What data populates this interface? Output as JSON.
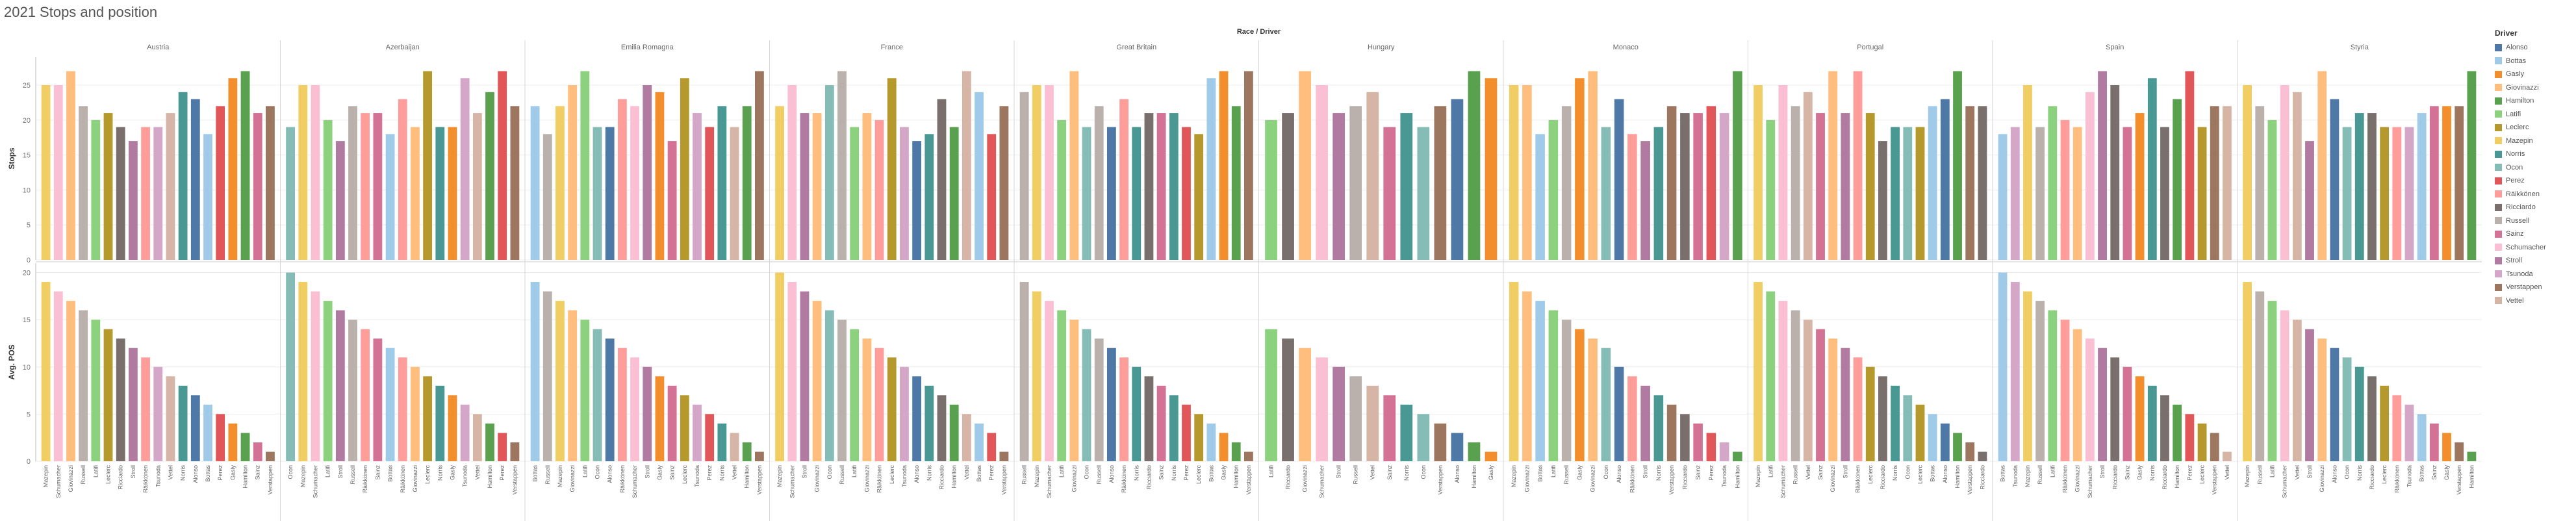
{
  "title": "2021 Stops and position",
  "chart_data": {
    "type": "bar",
    "title": "2021 Stops and position",
    "column_header": "Race / Driver",
    "legend_title": "Driver",
    "legend_position": "right",
    "grid": true,
    "panels": [
      {
        "ylabel": "Stops",
        "ylim": [
          0,
          29
        ],
        "ticks": [
          0,
          5,
          10,
          15,
          20,
          25
        ]
      },
      {
        "ylabel": "Avg. POS",
        "ylim": [
          0,
          21
        ],
        "ticks": [
          0,
          5,
          10,
          15,
          20
        ]
      }
    ],
    "colors": {
      "Alonso": "#4E79A7",
      "Bottas": "#A0CBE8",
      "Gasly": "#F28E2B",
      "Giovinazzi": "#FFBE7D",
      "Hamilton": "#59A14F",
      "Latifi": "#8CD17D",
      "Leclerc": "#B6992D",
      "Mazepin": "#F1CE63",
      "Norris": "#499894",
      "Ocon": "#86BCB6",
      "Perez": "#E15759",
      "Räikkönen": "#FF9D9A",
      "Ricciardo": "#79706E",
      "Russell": "#BAB0AC",
      "Sainz": "#D37295",
      "Schumacher": "#FABFD2",
      "Stroll": "#B07AA1",
      "Tsunoda": "#D4A6C8",
      "Verstappen": "#9D7660",
      "Vettel": "#D7B5A6"
    },
    "races": [
      {
        "name": "Austria",
        "drivers": [
          "Mazepin",
          "Schumacher",
          "Giovinazzi",
          "Russell",
          "Latifi",
          "Leclerc",
          "Ricciardo",
          "Stroll",
          "Räikkönen",
          "Tsunoda",
          "Vettel",
          "Norris",
          "Alonso",
          "Bottas",
          "Perez",
          "Gasly",
          "Hamilton",
          "Sainz",
          "Verstappen"
        ],
        "stops": [
          25,
          25,
          27,
          22,
          20,
          21,
          19,
          17,
          19,
          19,
          21,
          24,
          23,
          18,
          22,
          26,
          27,
          21,
          22
        ],
        "avg_pos": [
          19,
          18,
          17,
          16,
          15,
          14,
          13,
          12,
          11,
          10,
          9,
          8,
          7,
          6,
          5,
          4,
          3,
          2,
          1
        ]
      },
      {
        "name": "Azerbaijan",
        "drivers": [
          "Ocon",
          "Mazepin",
          "Schumacher",
          "Latifi",
          "Stroll",
          "Russell",
          "Räikkönen",
          "Sainz",
          "Bottas",
          "Räikkönen",
          "Giovinazzi",
          "Leclerc",
          "Norris",
          "Gasly",
          "Tsunoda",
          "Vettel",
          "Hamilton",
          "Perez",
          "Verstappen"
        ],
        "stops": [
          19,
          25,
          25,
          20,
          17,
          22,
          21,
          21,
          18,
          23,
          19,
          27,
          19,
          19,
          26,
          21,
          24,
          27,
          22
        ],
        "avg_pos": [
          20,
          19,
          18,
          17,
          16,
          15,
          14,
          13,
          12,
          11,
          10,
          9,
          8,
          7,
          6,
          5,
          4,
          3,
          2
        ]
      },
      {
        "name": "Emilia Romagna",
        "drivers": [
          "Bottas",
          "Russell",
          "Mazepin",
          "Giovinazzi",
          "Latifi",
          "Ocon",
          "Alonso",
          "Räikkönen",
          "Schumacher",
          "Stroll",
          "Gasly",
          "Sainz",
          "Leclerc",
          "Tsunoda",
          "Perez",
          "Norris",
          "Vettel",
          "Hamilton",
          "Verstappen"
        ],
        "stops": [
          22,
          18,
          22,
          25,
          27,
          19,
          19,
          23,
          22,
          25,
          24,
          17,
          26,
          21,
          19,
          22,
          19,
          22,
          27
        ],
        "avg_pos": [
          19,
          18,
          17,
          16,
          15,
          14,
          13,
          12,
          11,
          10,
          9,
          8,
          7,
          6,
          5,
          4,
          3,
          2,
          1
        ]
      },
      {
        "name": "France",
        "drivers": [
          "Mazepin",
          "Schumacher",
          "Stroll",
          "Giovinazzi",
          "Ocon",
          "Russell",
          "Latifi",
          "Giovinazzi",
          "Räikkönen",
          "Leclerc",
          "Tsunoda",
          "Alonso",
          "Norris",
          "Ricciardo",
          "Hamilton",
          "Vettel",
          "Bottas",
          "Perez",
          "Verstappen"
        ],
        "stops": [
          22,
          25,
          21,
          21,
          25,
          27,
          19,
          21,
          20,
          26,
          19,
          17,
          18,
          23,
          19,
          27,
          24,
          18,
          22
        ],
        "avg_pos": [
          20,
          19,
          18,
          17,
          16,
          15,
          14,
          13,
          12,
          11,
          10,
          9,
          8,
          7,
          6,
          5,
          4,
          3,
          1
        ]
      },
      {
        "name": "Great Britain",
        "drivers": [
          "Russell",
          "Mazepin",
          "Schumacher",
          "Latifi",
          "Giovinazzi",
          "Ocon",
          "Russell",
          "Alonso",
          "Räikkönen",
          "Norris",
          "Ricciardo",
          "Sainz",
          "Norris",
          "Perez",
          "Leclerc",
          "Bottas",
          "Gasly",
          "Hamilton",
          "Verstappen"
        ],
        "stops": [
          24,
          25,
          25,
          20,
          27,
          19,
          22,
          19,
          23,
          19,
          21,
          21,
          21,
          19,
          18,
          26,
          27,
          22,
          27
        ],
        "avg_pos": [
          19,
          18,
          17,
          16,
          15,
          14,
          13,
          12,
          11,
          10,
          9,
          8,
          7,
          6,
          5,
          4,
          3,
          2,
          1
        ]
      },
      {
        "name": "Hungary",
        "drivers": [
          "Latifi",
          "Ricciardo",
          "Giovinazzi",
          "Schumacher",
          "Stroll",
          "Russell",
          "Vettel",
          "Sainz",
          "Norris",
          "Ocon",
          "Verstappen",
          "Alonso",
          "Hamilton",
          "Gasly"
        ],
        "stops": [
          20,
          21,
          27,
          25,
          21,
          22,
          24,
          19,
          21,
          19,
          22,
          23,
          27,
          26
        ],
        "avg_pos": [
          14,
          13,
          12,
          11,
          10,
          9,
          8,
          7,
          6,
          5,
          4,
          3,
          2,
          1
        ]
      },
      {
        "name": "Monaco",
        "drivers": [
          "Mazepin",
          "Giovinazzi",
          "Bottas",
          "Latifi",
          "Russell",
          "Gasly",
          "Giovinazzi",
          "Ocon",
          "Alonso",
          "Räikkönen",
          "Stroll",
          "Norris",
          "Verstappen",
          "Ricciardo",
          "Sainz",
          "Perez",
          "Tsunoda",
          "Hamilton"
        ],
        "stops": [
          25,
          25,
          18,
          20,
          22,
          26,
          27,
          19,
          23,
          18,
          17,
          19,
          22,
          21,
          21,
          22,
          21,
          27
        ],
        "avg_pos": [
          19,
          18,
          17,
          16,
          15,
          14,
          13,
          12,
          10,
          9,
          8,
          7,
          6,
          5,
          4,
          3,
          2,
          1
        ]
      },
      {
        "name": "Portugal",
        "drivers": [
          "Mazepin",
          "Latifi",
          "Schumacher",
          "Russell",
          "Vettel",
          "Sainz",
          "Giovinazzi",
          "Stroll",
          "Räikkönen",
          "Leclerc",
          "Ricciardo",
          "Norris",
          "Ocon",
          "Leclerc",
          "Bottas",
          "Alonso",
          "Hamilton",
          "Verstappen",
          "Ricciardo"
        ],
        "stops": [
          25,
          20,
          25,
          22,
          24,
          21,
          27,
          21,
          27,
          21,
          17,
          19,
          19,
          19,
          22,
          23,
          27,
          22,
          22
        ],
        "avg_pos": [
          19,
          18,
          17,
          16,
          15,
          14,
          13,
          12,
          11,
          10,
          9,
          8,
          7,
          6,
          5,
          4,
          3,
          2,
          1
        ]
      },
      {
        "name": "Spain",
        "drivers": [
          "Bottas",
          "Tsunoda",
          "Mazepin",
          "Russell",
          "Latifi",
          "Räikkönen",
          "Giovinazzi",
          "Schumacher",
          "Stroll",
          "Ricciardo",
          "Sainz",
          "Gasly",
          "Norris",
          "Ricciardo",
          "Hamilton",
          "Perez",
          "Leclerc",
          "Verstappen",
          "Vettel"
        ],
        "stops": [
          18,
          19,
          25,
          19,
          22,
          20,
          19,
          24,
          27,
          25,
          19,
          21,
          26,
          19,
          23,
          27,
          19,
          22,
          22
        ],
        "avg_pos": [
          20,
          19,
          18,
          17,
          16,
          15,
          14,
          13,
          12,
          11,
          10,
          9,
          8,
          7,
          6,
          5,
          4,
          3,
          1
        ]
      },
      {
        "name": "Styria",
        "drivers": [
          "Mazepin",
          "Russell",
          "Latifi",
          "Schumacher",
          "Vettel",
          "Stroll",
          "Giovinazzi",
          "Alonso",
          "Ocon",
          "Norris",
          "Ricciardo",
          "Leclerc",
          "Räikkönen",
          "Tsunoda",
          "Bottas",
          "Sainz",
          "Gasly",
          "Verstappen",
          "Hamilton"
        ],
        "stops": [
          25,
          22,
          20,
          25,
          24,
          17,
          27,
          23,
          19,
          21,
          21,
          19,
          19,
          19,
          21,
          22,
          22,
          22,
          27
        ],
        "avg_pos": [
          19,
          18,
          17,
          16,
          15,
          14,
          13,
          12,
          11,
          10,
          9,
          8,
          7,
          6,
          5,
          4,
          3,
          2,
          1
        ]
      }
    ],
    "legend": [
      "Alonso",
      "Bottas",
      "Gasly",
      "Giovinazzi",
      "Hamilton",
      "Latifi",
      "Leclerc",
      "Mazepin",
      "Norris",
      "Ocon",
      "Perez",
      "Räikkönen",
      "Ricciardo",
      "Russell",
      "Sainz",
      "Schumacher",
      "Stroll",
      "Tsunoda",
      "Verstappen",
      "Vettel"
    ]
  }
}
